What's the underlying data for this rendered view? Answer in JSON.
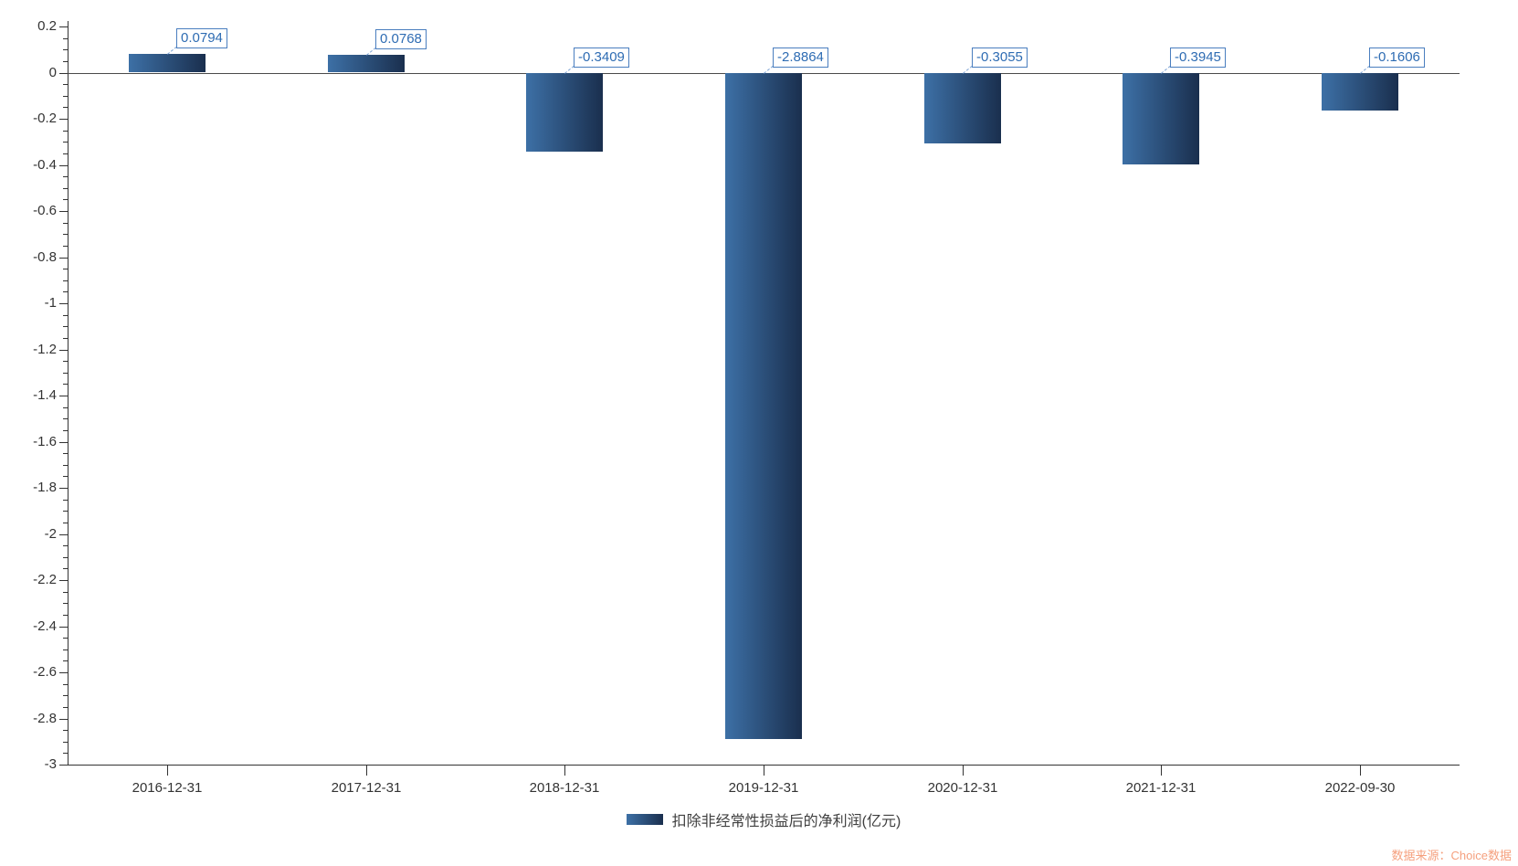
{
  "chart_data": {
    "type": "bar",
    "title": "",
    "categories": [
      "2016-12-31",
      "2017-12-31",
      "2018-12-31",
      "2019-12-31",
      "2020-12-31",
      "2021-12-31",
      "2022-09-30"
    ],
    "series": [
      {
        "name": "扣除非经常性损益后的净利润(亿元)",
        "values": [
          0.0794,
          0.0768,
          -0.3409,
          -2.8864,
          -0.3055,
          -0.3945,
          -0.1606
        ],
        "value_labels": [
          "0.0794",
          "0.0768",
          "-0.3409",
          "-2.8864",
          "-0.3055",
          "-0.3945",
          "-0.1606"
        ]
      }
    ],
    "xlabel": "",
    "ylabel": "",
    "ylim": [
      -3,
      0.2
    ],
    "y_major_step": 0.2,
    "y_minor_step": 0.05,
    "y_tick_labels": [
      "0.2",
      "0",
      "-0.2",
      "-0.4",
      "-0.6",
      "-0.8",
      "-1",
      "-1.2",
      "-1.4",
      "-1.6",
      "-1.8",
      "-2",
      "-2.2",
      "-2.4",
      "-2.6",
      "-2.8",
      "-3"
    ],
    "grid": false,
    "legend_position": "bottom"
  },
  "legend": {
    "label": "扣除非经常性损益后的净利润(亿元)"
  },
  "source": {
    "text": "数据来源：Choice数据"
  },
  "colors": {
    "bar_gradient_start": "#3d70a6",
    "bar_gradient_end": "#1a2f4e",
    "label_box_border": "#4a7ebf",
    "label_box_text": "#2e6cb3",
    "connector": "#7ba2d4",
    "axis": "#333333",
    "zero_line": "#4a4a4a",
    "tick_label": "#333333",
    "source_text": "#f5a07e"
  }
}
